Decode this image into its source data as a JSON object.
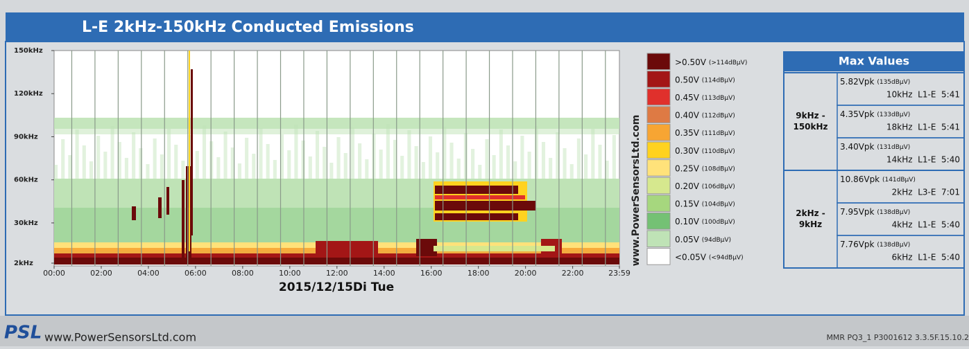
{
  "chart_data": {
    "type": "spectrogram",
    "title": "L-E 2kHz-150kHz Conducted Emissions",
    "xlabel": "2015/12/15Di Tue",
    "watermark": "www.PowerSensorsLtd.com",
    "xlim": [
      0,
      23.983
    ],
    "xticks": [
      {
        "value": 0,
        "label": "00:00"
      },
      {
        "value": 2,
        "label": "02:00"
      },
      {
        "value": 4,
        "label": "04:00"
      },
      {
        "value": 6,
        "label": "06:00"
      },
      {
        "value": 8,
        "label": "08:00"
      },
      {
        "value": 10,
        "label": "10:00"
      },
      {
        "value": 12,
        "label": "12:00"
      },
      {
        "value": 14,
        "label": "14:00"
      },
      {
        "value": 16,
        "label": "16:00"
      },
      {
        "value": 18,
        "label": "18:00"
      },
      {
        "value": 20,
        "label": "20:00"
      },
      {
        "value": 22,
        "label": "22:00"
      },
      {
        "value": 23.983,
        "label": "23:59"
      }
    ],
    "ylim": [
      2,
      150
    ],
    "yticks": [
      {
        "value": 2,
        "label": "2kHz"
      },
      {
        "value": 30,
        "label": "30kHz"
      },
      {
        "value": 60,
        "label": "60kHz"
      },
      {
        "value": 90,
        "label": "90kHz"
      },
      {
        "value": 120,
        "label": "120kHz"
      },
      {
        "value": 150,
        "label": "150kHz"
      }
    ],
    "legend": [
      {
        "label": ">0.50V",
        "db": "(>114dBµV)",
        "color": "#6b0a0a"
      },
      {
        "label": "0.50V",
        "db": "(114dBµV)",
        "color": "#a31616"
      },
      {
        "label": "0.45V",
        "db": "(113dBµV)",
        "color": "#e0302c"
      },
      {
        "label": "0.40V",
        "db": "(112dBµV)",
        "color": "#de7a44"
      },
      {
        "label": "0.35V",
        "db": "(111dBµV)",
        "color": "#f7a533"
      },
      {
        "label": "0.30V",
        "db": "(110dBµV)",
        "color": "#ffd21f"
      },
      {
        "label": "0.25V",
        "db": "(108dBµV)",
        "color": "#ffe27a"
      },
      {
        "label": "0.20V",
        "db": "(106dBµV)",
        "color": "#d6e88e"
      },
      {
        "label": "0.15V",
        "db": "(104dBµV)",
        "color": "#a6d77e"
      },
      {
        "label": "0.10V",
        "db": "(100dBµV)",
        "color": "#74c174"
      },
      {
        "label": "0.05V",
        "db": "(94dBµV)",
        "color": "#bfe3b6"
      },
      {
        "label": "<0.05V",
        "db": "(<94dBµV)",
        "color": "#ffffff"
      }
    ],
    "max_values": {
      "title": "Max Values",
      "groups": [
        {
          "label": [
            "9kHz -",
            "150kHz"
          ],
          "entries": [
            {
              "value": "5.82Vpk",
              "db": "(135dBµV)",
              "detail": "10kHz  L1-E  5:41"
            },
            {
              "value": "4.35Vpk",
              "db": "(133dBµV)",
              "detail": "18kHz  L1-E  5:41"
            },
            {
              "value": "3.40Vpk",
              "db": "(131dBµV)",
              "detail": "14kHz  L1-E  5:40"
            }
          ]
        },
        {
          "label": [
            "2kHz -",
            "9kHz"
          ],
          "entries": [
            {
              "value": "10.86Vpk",
              "db": "(141dBµV)",
              "detail": "2kHz  L3-E  7:01"
            },
            {
              "value": "7.95Vpk",
              "db": "(138dBµV)",
              "detail": "4kHz  L1-E  5:40"
            },
            {
              "value": "7.76Vpk",
              "db": "(138dBµV)",
              "detail": "6kHz  L1-E  5:40"
            }
          ]
        }
      ]
    },
    "footer": {
      "logo": "PSL",
      "website": "www.PowerSensorsLtd.com",
      "device": "MMR PQ3_1  P3001612  3.3.5F.15.10.2"
    }
  }
}
